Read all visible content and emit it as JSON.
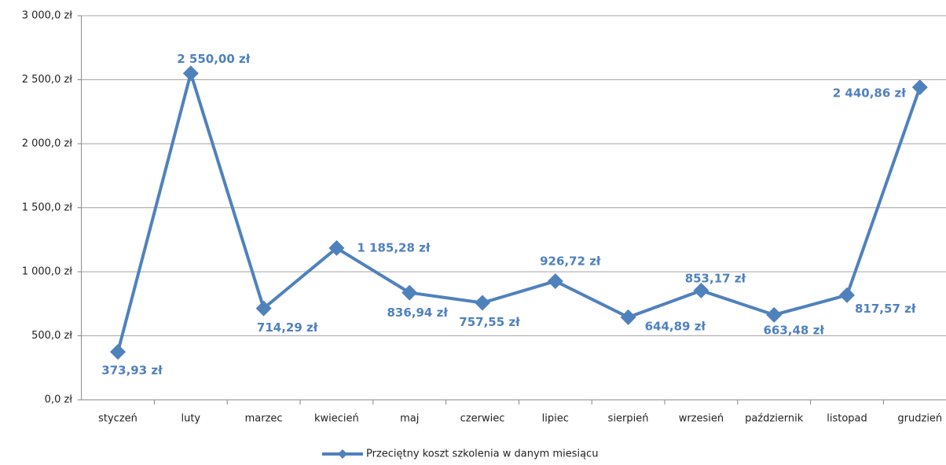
{
  "chart_data": {
    "type": "line",
    "categories": [
      "styczeń",
      "luty",
      "marzec",
      "kwiecień",
      "maj",
      "czerwiec",
      "lipiec",
      "sierpień",
      "wrzesień",
      "październik",
      "listopad",
      "grudzień"
    ],
    "series": [
      {
        "name": "Przeciętny koszt szkolenia w danym miesiącu",
        "color": "#4f81bd",
        "values": [
          373.93,
          2550.0,
          714.29,
          1185.28,
          836.94,
          757.55,
          926.72,
          644.89,
          853.17,
          663.48,
          817.57,
          2440.86
        ],
        "value_labels": [
          "373,93 zł",
          "2 550,00 zł",
          "714,29 zł",
          "1 185,28 zł",
          "836,94 zł",
          "757,55 zł",
          "926,72 zł",
          "644,89 zł",
          "853,17 zł",
          "663,48 zł",
          "817,57 zł",
          "2 440,86 zł"
        ]
      }
    ],
    "ylim": [
      0,
      3000
    ],
    "yticks": [
      {
        "value": 0,
        "label": "0,0 zł"
      },
      {
        "value": 500,
        "label": "500,0 zł"
      },
      {
        "value": 1000,
        "label": "1 000,0 zł"
      },
      {
        "value": 1500,
        "label": "1 500,0 zł"
      },
      {
        "value": 2000,
        "label": "2 000,0 zł"
      },
      {
        "value": 2500,
        "label": "2 500,0 zł"
      },
      {
        "value": 3000,
        "label": "3 000,0 zł"
      }
    ],
    "grid": true,
    "legend": "bottom"
  }
}
